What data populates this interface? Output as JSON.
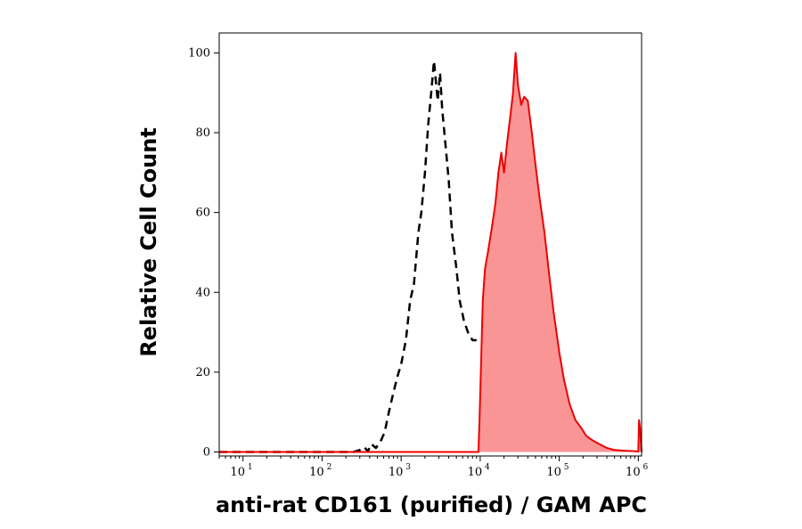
{
  "chart_data": {
    "type": "area",
    "xlabel": "anti-rat CD161 (purified) / GAM APC",
    "ylabel": "Relative Cell Count",
    "xscale": "log",
    "xlim": [
      5,
      1100000.0
    ],
    "ylim": [
      -1,
      105
    ],
    "x_ticks": [
      {
        "value": 10,
        "base": "10",
        "exp": "1"
      },
      {
        "value": 100,
        "base": "10",
        "exp": "2"
      },
      {
        "value": 1000,
        "base": "10",
        "exp": "3"
      },
      {
        "value": 10000,
        "base": "10",
        "exp": "4"
      },
      {
        "value": 100000,
        "base": "10",
        "exp": "5"
      },
      {
        "value": 1000000,
        "base": "10",
        "exp": "6"
      }
    ],
    "y_ticks": [
      {
        "value": 0,
        "label": "0"
      },
      {
        "value": 20,
        "label": "20"
      },
      {
        "value": 40,
        "label": "40"
      },
      {
        "value": 60,
        "label": "60"
      },
      {
        "value": 80,
        "label": "80"
      },
      {
        "value": 100,
        "label": "100"
      }
    ],
    "grid": false,
    "series": [
      {
        "style": "dashed-black-line",
        "color": "#000000",
        "points": [
          [
            5,
            0
          ],
          [
            250,
            0
          ],
          [
            300,
            0.5
          ],
          [
            340,
            1.2
          ],
          [
            380,
            0.2
          ],
          [
            420,
            2
          ],
          [
            480,
            1
          ],
          [
            560,
            3
          ],
          [
            620,
            5
          ],
          [
            700,
            10
          ],
          [
            800,
            15
          ],
          [
            900,
            19
          ],
          [
            1000,
            22
          ],
          [
            1150,
            28
          ],
          [
            1300,
            38
          ],
          [
            1450,
            42
          ],
          [
            1650,
            55
          ],
          [
            1800,
            60
          ],
          [
            2000,
            70
          ],
          [
            2200,
            82
          ],
          [
            2400,
            90
          ],
          [
            2600,
            98
          ],
          [
            2750,
            93
          ],
          [
            2900,
            88
          ],
          [
            3100,
            95
          ],
          [
            3300,
            86
          ],
          [
            3600,
            78
          ],
          [
            4000,
            68
          ],
          [
            4400,
            55
          ],
          [
            5000,
            46
          ],
          [
            5500,
            38
          ],
          [
            6200,
            33
          ],
          [
            7000,
            30
          ],
          [
            8000,
            28
          ],
          [
            9000,
            28
          ]
        ]
      },
      {
        "style": "filled-red-area",
        "color": "#ee0000",
        "fill": "#f99595",
        "points": [
          [
            5,
            0
          ],
          [
            9500,
            0
          ],
          [
            9800,
            8
          ],
          [
            10200,
            20
          ],
          [
            10800,
            38
          ],
          [
            11500,
            46
          ],
          [
            12500,
            50
          ],
          [
            14000,
            56
          ],
          [
            15500,
            62
          ],
          [
            17000,
            70
          ],
          [
            18500,
            75
          ],
          [
            20000,
            70
          ],
          [
            22000,
            78
          ],
          [
            24000,
            84
          ],
          [
            26000,
            90
          ],
          [
            28000,
            100
          ],
          [
            30000,
            92
          ],
          [
            33000,
            87
          ],
          [
            36000,
            89
          ],
          [
            40000,
            88
          ],
          [
            45000,
            80
          ],
          [
            50000,
            72
          ],
          [
            57000,
            63
          ],
          [
            65000,
            55
          ],
          [
            75000,
            44
          ],
          [
            85000,
            35
          ],
          [
            100000,
            25
          ],
          [
            115000,
            18
          ],
          [
            135000,
            12
          ],
          [
            160000,
            8
          ],
          [
            190000,
            6
          ],
          [
            220000,
            4
          ],
          [
            260000,
            3
          ],
          [
            320000,
            2
          ],
          [
            400000,
            1
          ],
          [
            500000,
            0.5
          ],
          [
            700000,
            0.3
          ],
          [
            900000,
            0.2
          ],
          [
            1000000,
            0.1
          ],
          [
            1020000,
            8
          ],
          [
            1050000,
            6
          ],
          [
            1100000,
            0
          ]
        ]
      }
    ]
  }
}
